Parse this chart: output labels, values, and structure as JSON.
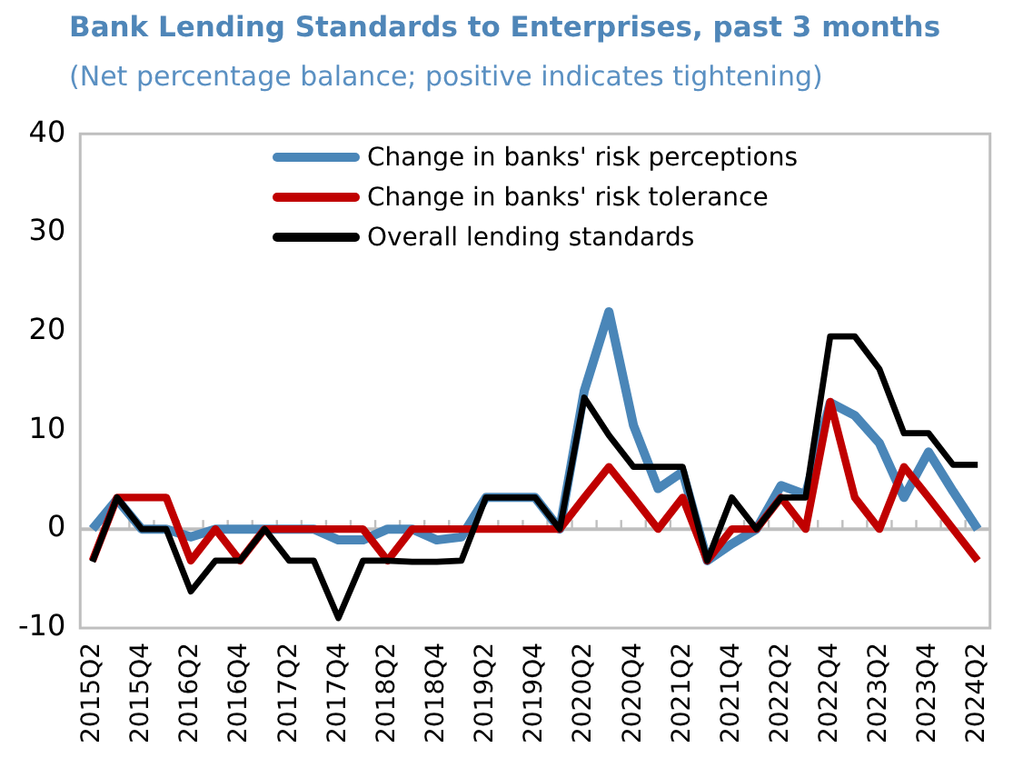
{
  "chart_data": {
    "type": "line",
    "title": "Bank Lending Standards to Enterprises, past 3 months",
    "subtitle": "(Net percentage balance; positive indicates tightening)",
    "categories": [
      "2015Q2",
      null,
      "2015Q4",
      null,
      "2016Q2",
      null,
      "2016Q4",
      null,
      "2017Q2",
      null,
      "2017Q4",
      null,
      "2018Q2",
      null,
      "2018Q4",
      null,
      "2019Q2",
      null,
      "2019Q4",
      null,
      "2020Q2",
      null,
      "2020Q4",
      null,
      "2021Q2",
      null,
      "2021Q4",
      null,
      "2022Q2",
      null,
      "2022Q4",
      null,
      "2023Q2",
      null,
      "2023Q4",
      null,
      "2024Q2"
    ],
    "series": [
      {
        "name": "Change in banks' risk perceptions",
        "color": "#4a86b8",
        "values": [
          0,
          3,
          0,
          0,
          -0.8,
          0,
          0,
          0,
          0,
          0,
          -1.1,
          -1.1,
          0,
          0,
          -1.1,
          -0.8,
          3.2,
          3.2,
          3.2,
          0,
          14,
          22,
          10.5,
          4.1,
          5.8,
          -3.2,
          -1.5,
          0,
          4.4,
          3.5,
          12.8,
          11.5,
          8.7,
          3.2,
          7.8,
          3.8,
          0
        ]
      },
      {
        "name": "Change in banks' risk tolerance",
        "color": "#c00000",
        "values": [
          -3.2,
          3.2,
          3.2,
          3.2,
          -3.2,
          0,
          -3.2,
          0,
          0,
          0,
          0,
          0,
          -3.2,
          0,
          0,
          0,
          0,
          0,
          0,
          0,
          3.2,
          6.3,
          3.2,
          0,
          3.2,
          -3.2,
          0,
          0,
          3.2,
          0,
          12.9,
          3.2,
          0,
          6.3,
          3.2,
          0,
          -3.2
        ]
      },
      {
        "name": "Overall lending standards",
        "color": "#000000",
        "values": [
          -3.3,
          3.2,
          0,
          0,
          -6.3,
          -3.2,
          -3.2,
          0,
          -3.2,
          -3.2,
          -9,
          -3.2,
          -3.2,
          -3.3,
          -3.3,
          -3.2,
          3.2,
          3.2,
          3.2,
          0,
          13.3,
          9.5,
          6.3,
          6.3,
          6.3,
          -3.2,
          3.2,
          0,
          3.2,
          3.2,
          19.5,
          19.5,
          16.2,
          9.7,
          9.7,
          6.5,
          6.5
        ]
      }
    ],
    "ylim": [
      -10,
      40
    ],
    "yticks": [
      -10,
      0,
      10,
      20,
      30,
      40
    ],
    "grid": false,
    "legend": "top",
    "marker": "none",
    "line_style": "solid",
    "ref_lines": [
      {
        "axis": "y",
        "value": 0,
        "color": "#bfbfbf"
      }
    ]
  }
}
